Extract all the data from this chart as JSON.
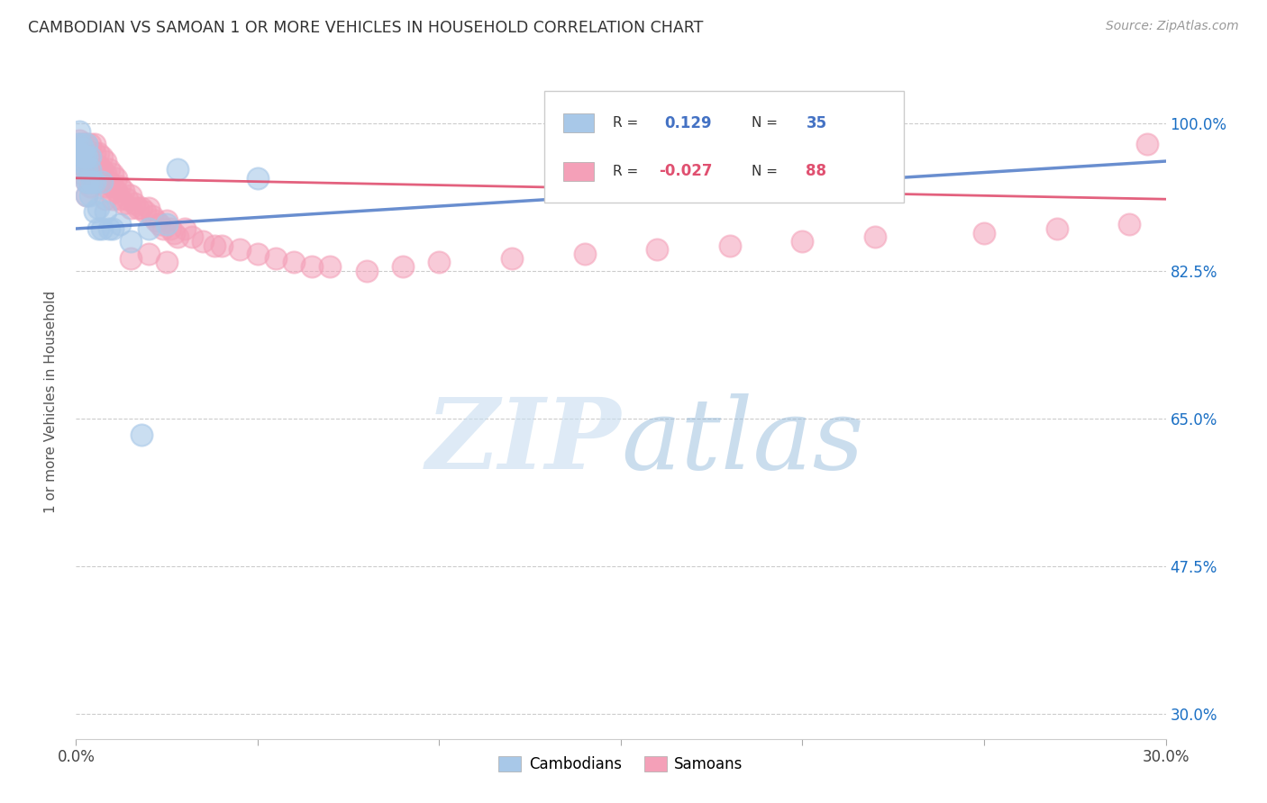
{
  "title": "CAMBODIAN VS SAMOAN 1 OR MORE VEHICLES IN HOUSEHOLD CORRELATION CHART",
  "source": "Source: ZipAtlas.com",
  "ylabel": "1 or more Vehicles in Household",
  "yticks_labels": [
    "100.0%",
    "82.5%",
    "65.0%",
    "47.5%",
    "30.0%"
  ],
  "yticks_values": [
    1.0,
    0.825,
    0.65,
    0.475,
    0.3
  ],
  "xmin": 0.0,
  "xmax": 0.3,
  "ymin": 0.27,
  "ymax": 1.07,
  "cambodian_R": 0.129,
  "cambodian_N": 35,
  "samoan_R": -0.027,
  "samoan_N": 88,
  "cambodian_color": "#a8c8e8",
  "samoan_color": "#f4a0b8",
  "cambodian_line_color": "#4472c4",
  "samoan_line_color": "#e05070",
  "legend_label_cambodians": "Cambodians",
  "legend_label_samoans": "Samoans",
  "cambodian_x": [
    0.0005,
    0.001,
    0.001,
    0.0015,
    0.0015,
    0.002,
    0.002,
    0.002,
    0.0025,
    0.003,
    0.003,
    0.003,
    0.003,
    0.003,
    0.0035,
    0.004,
    0.004,
    0.004,
    0.0045,
    0.005,
    0.005,
    0.006,
    0.006,
    0.007,
    0.007,
    0.008,
    0.009,
    0.01,
    0.012,
    0.015,
    0.02,
    0.025,
    0.028,
    0.05,
    0.018
  ],
  "cambodian_y": [
    0.975,
    0.99,
    0.965,
    0.975,
    0.955,
    0.97,
    0.96,
    0.945,
    0.96,
    0.975,
    0.96,
    0.945,
    0.93,
    0.915,
    0.93,
    0.96,
    0.945,
    0.915,
    0.93,
    0.93,
    0.895,
    0.9,
    0.875,
    0.93,
    0.875,
    0.895,
    0.875,
    0.875,
    0.88,
    0.86,
    0.875,
    0.88,
    0.945,
    0.935,
    0.63
  ],
  "samoan_x": [
    0.0005,
    0.001,
    0.001,
    0.001,
    0.0015,
    0.002,
    0.002,
    0.002,
    0.002,
    0.003,
    0.003,
    0.003,
    0.003,
    0.003,
    0.003,
    0.004,
    0.004,
    0.004,
    0.004,
    0.004,
    0.005,
    0.005,
    0.005,
    0.005,
    0.006,
    0.006,
    0.006,
    0.007,
    0.007,
    0.007,
    0.008,
    0.008,
    0.008,
    0.008,
    0.009,
    0.009,
    0.01,
    0.01,
    0.01,
    0.011,
    0.011,
    0.012,
    0.012,
    0.013,
    0.013,
    0.014,
    0.015,
    0.015,
    0.016,
    0.017,
    0.018,
    0.019,
    0.02,
    0.021,
    0.022,
    0.023,
    0.024,
    0.025,
    0.026,
    0.027,
    0.028,
    0.03,
    0.032,
    0.035,
    0.038,
    0.04,
    0.045,
    0.05,
    0.055,
    0.06,
    0.065,
    0.07,
    0.08,
    0.09,
    0.1,
    0.12,
    0.14,
    0.16,
    0.18,
    0.2,
    0.22,
    0.25,
    0.27,
    0.29,
    0.295,
    0.015,
    0.02,
    0.025
  ],
  "samoan_y": [
    0.975,
    0.98,
    0.97,
    0.96,
    0.975,
    0.975,
    0.965,
    0.95,
    0.94,
    0.975,
    0.965,
    0.955,
    0.945,
    0.93,
    0.915,
    0.975,
    0.965,
    0.955,
    0.94,
    0.925,
    0.975,
    0.965,
    0.95,
    0.935,
    0.965,
    0.95,
    0.935,
    0.96,
    0.945,
    0.93,
    0.955,
    0.94,
    0.925,
    0.91,
    0.945,
    0.93,
    0.94,
    0.925,
    0.91,
    0.935,
    0.92,
    0.925,
    0.91,
    0.92,
    0.905,
    0.91,
    0.915,
    0.9,
    0.905,
    0.9,
    0.9,
    0.895,
    0.9,
    0.89,
    0.885,
    0.88,
    0.875,
    0.885,
    0.875,
    0.87,
    0.865,
    0.875,
    0.865,
    0.86,
    0.855,
    0.855,
    0.85,
    0.845,
    0.84,
    0.835,
    0.83,
    0.83,
    0.825,
    0.83,
    0.835,
    0.84,
    0.845,
    0.85,
    0.855,
    0.86,
    0.865,
    0.87,
    0.875,
    0.88,
    0.975,
    0.84,
    0.845,
    0.835
  ]
}
